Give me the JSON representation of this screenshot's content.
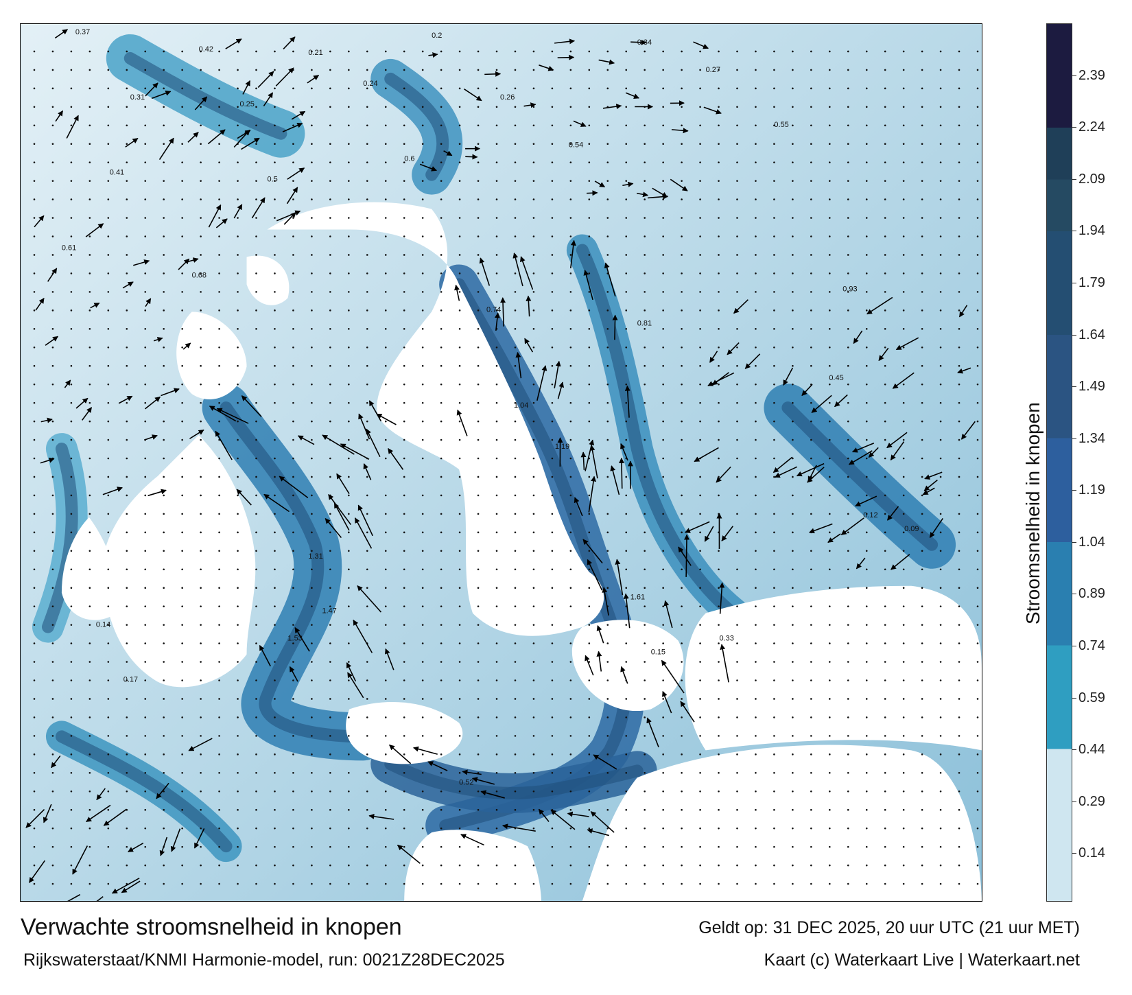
{
  "map": {
    "type": "current-speed-map",
    "region_features": [
      "sea",
      "coastline",
      "current-arrows",
      "speed-labels",
      "grid-dots"
    ],
    "land_color": "#ffffff",
    "speed_labels": [
      "0.37",
      "0.42",
      "0.21",
      "0.2",
      "0.34",
      "0.31",
      "0.25",
      "0.24",
      "0.26",
      "0.27",
      "0.41",
      "0.5",
      "0.6",
      "0.54",
      "0.55",
      "0.61",
      "0.68",
      "0.74",
      "0.81",
      "0.93",
      "1.04",
      "1.19",
      "1.31",
      "1.47",
      "1.53",
      "1.61",
      "0.15",
      "0.12",
      "0.09",
      "0.14",
      "0.17",
      "0.33",
      "0.45",
      "0.52"
    ]
  },
  "colorbar": {
    "label": "Stroomsnelheid in knopen",
    "ticks": [
      "2.39",
      "2.24",
      "2.09",
      "1.94",
      "1.79",
      "1.64",
      "1.49",
      "1.34",
      "1.19",
      "1.04",
      "0.89",
      "0.74",
      "0.59",
      "0.44",
      "0.29",
      "0.14"
    ],
    "min": 0,
    "max": 2.54,
    "bands": [
      {
        "from": 0.0,
        "to": 0.44,
        "color": "#cfe6f0"
      },
      {
        "from": 0.44,
        "to": 0.74,
        "color": "#2f9ec1"
      },
      {
        "from": 0.74,
        "to": 1.04,
        "color": "#2a7fb0"
      },
      {
        "from": 1.04,
        "to": 1.34,
        "color": "#2d5f9e"
      },
      {
        "from": 1.34,
        "to": 1.64,
        "color": "#2b5482"
      },
      {
        "from": 1.64,
        "to": 1.94,
        "color": "#244e72"
      },
      {
        "from": 1.94,
        "to": 2.09,
        "color": "#254a62"
      },
      {
        "from": 2.09,
        "to": 2.24,
        "color": "#1f3f58"
      },
      {
        "from": 2.24,
        "to": 2.54,
        "color": "#1c1b40"
      }
    ]
  },
  "footer": {
    "title": "Verwachte stroomsnelheid in knopen",
    "subtitle": "Rijkswaterstaat/KNMI Harmonie-model, run: 0021Z28DEC2025",
    "valid": "Geldt op: 31 DEC 2025, 20 uur UTC (21 uur MET)",
    "credit": "Kaart (c) Waterkaart Live | Waterkaart.net"
  }
}
